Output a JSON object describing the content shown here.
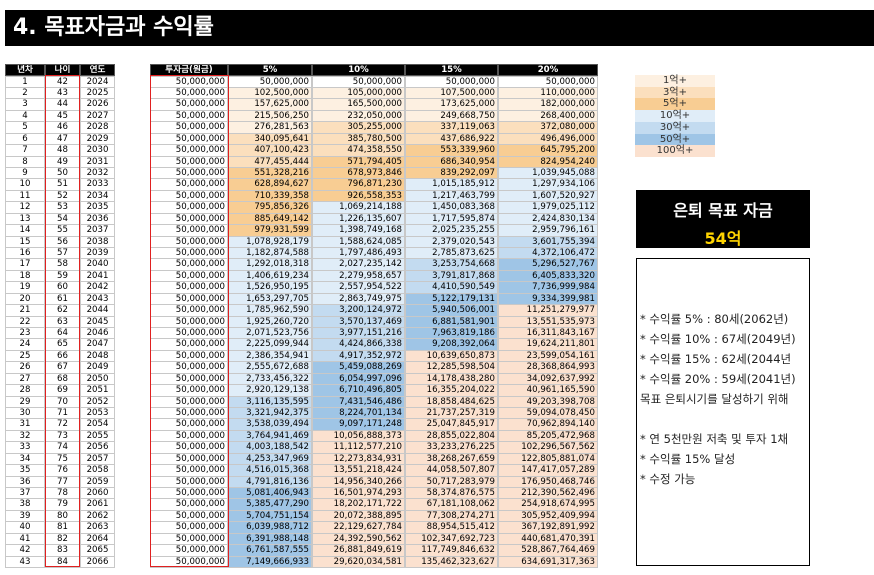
{
  "header": {
    "title": "4. 목표자금과 수익률"
  },
  "table": {
    "headers": [
      "년차",
      "나이",
      "연도",
      "투자금(원금)",
      "5%",
      "10%",
      "15%",
      "20%"
    ],
    "rows": [
      [
        1,
        42,
        2024,
        "50,000,000",
        "50,000,000",
        "50,000,000",
        "50,000,000",
        "50,000,000"
      ],
      [
        2,
        43,
        2025,
        "50,000,000",
        "102,500,000",
        "105,000,000",
        "107,500,000",
        "110,000,000"
      ],
      [
        3,
        44,
        2026,
        "50,000,000",
        "157,625,000",
        "165,500,000",
        "173,625,000",
        "182,000,000"
      ],
      [
        4,
        45,
        2027,
        "50,000,000",
        "215,506,250",
        "232,050,000",
        "249,668,750",
        "268,400,000"
      ],
      [
        5,
        46,
        2028,
        "50,000,000",
        "276,281,563",
        "305,255,000",
        "337,119,063",
        "372,080,000"
      ],
      [
        6,
        47,
        2029,
        "50,000,000",
        "340,095,641",
        "385,780,500",
        "437,686,922",
        "496,496,000"
      ],
      [
        7,
        48,
        2030,
        "50,000,000",
        "407,100,423",
        "474,358,550",
        "553,339,960",
        "645,795,200"
      ],
      [
        8,
        49,
        2031,
        "50,000,000",
        "477,455,444",
        "571,794,405",
        "686,340,954",
        "824,954,240"
      ],
      [
        9,
        50,
        2032,
        "50,000,000",
        "551,328,216",
        "678,973,846",
        "839,292,097",
        "1,039,945,088"
      ],
      [
        10,
        51,
        2033,
        "50,000,000",
        "628,894,627",
        "796,871,230",
        "1,015,185,912",
        "1,297,934,106"
      ],
      [
        11,
        52,
        2034,
        "50,000,000",
        "710,339,358",
        "926,558,353",
        "1,217,463,799",
        "1,607,520,927"
      ],
      [
        12,
        53,
        2035,
        "50,000,000",
        "795,856,326",
        "1,069,214,188",
        "1,450,083,368",
        "1,979,025,112"
      ],
      [
        13,
        54,
        2036,
        "50,000,000",
        "885,649,142",
        "1,226,135,607",
        "1,717,595,874",
        "2,424,830,134"
      ],
      [
        14,
        55,
        2037,
        "50,000,000",
        "979,931,599",
        "1,398,749,168",
        "2,025,235,255",
        "2,959,796,161"
      ],
      [
        15,
        56,
        2038,
        "50,000,000",
        "1,078,928,179",
        "1,588,624,085",
        "2,379,020,543",
        "3,601,755,394"
      ],
      [
        16,
        57,
        2039,
        "50,000,000",
        "1,182,874,588",
        "1,797,486,493",
        "2,785,873,625",
        "4,372,106,472"
      ],
      [
        17,
        58,
        2040,
        "50,000,000",
        "1,292,018,318",
        "2,027,235,142",
        "3,253,754,668",
        "5,296,527,767"
      ],
      [
        18,
        59,
        2041,
        "50,000,000",
        "1,406,619,234",
        "2,279,958,657",
        "3,791,817,868",
        "6,405,833,320"
      ],
      [
        19,
        60,
        2042,
        "50,000,000",
        "1,526,950,195",
        "2,557,954,522",
        "4,410,590,549",
        "7,736,999,984"
      ],
      [
        20,
        61,
        2043,
        "50,000,000",
        "1,653,297,705",
        "2,863,749,975",
        "5,122,179,131",
        "9,334,399,981"
      ],
      [
        21,
        62,
        2044,
        "50,000,000",
        "1,785,962,590",
        "3,200,124,972",
        "5,940,506,001",
        "11,251,279,977"
      ],
      [
        22,
        63,
        2045,
        "50,000,000",
        "1,925,260,720",
        "3,570,137,469",
        "6,881,581,901",
        "13,551,535,973"
      ],
      [
        23,
        64,
        2046,
        "50,000,000",
        "2,071,523,756",
        "3,977,151,216",
        "7,963,819,186",
        "16,311,843,167"
      ],
      [
        24,
        65,
        2047,
        "50,000,000",
        "2,225,099,944",
        "4,424,866,338",
        "9,208,392,064",
        "19,624,211,801"
      ],
      [
        25,
        66,
        2048,
        "50,000,000",
        "2,386,354,941",
        "4,917,352,972",
        "10,639,650,873",
        "23,599,054,161"
      ],
      [
        26,
        67,
        2049,
        "50,000,000",
        "2,555,672,688",
        "5,459,088,269",
        "12,285,598,504",
        "28,368,864,993"
      ],
      [
        27,
        68,
        2050,
        "50,000,000",
        "2,733,456,322",
        "6,054,997,096",
        "14,178,438,280",
        "34,092,637,992"
      ],
      [
        28,
        69,
        2051,
        "50,000,000",
        "2,920,129,138",
        "6,710,496,805",
        "16,355,204,022",
        "40,961,165,590"
      ],
      [
        29,
        70,
        2052,
        "50,000,000",
        "3,116,135,595",
        "7,431,546,486",
        "18,858,484,625",
        "49,203,398,708"
      ],
      [
        30,
        71,
        2053,
        "50,000,000",
        "3,321,942,375",
        "8,224,701,134",
        "21,737,257,319",
        "59,094,078,450"
      ],
      [
        31,
        72,
        2054,
        "50,000,000",
        "3,538,039,494",
        "9,097,171,248",
        "25,047,845,917",
        "70,962,894,140"
      ],
      [
        32,
        73,
        2055,
        "50,000,000",
        "3,764,941,469",
        "10,056,888,373",
        "28,855,022,804",
        "85,205,472,968"
      ],
      [
        33,
        74,
        2056,
        "50,000,000",
        "4,003,188,542",
        "11,112,577,210",
        "33,233,276,225",
        "102,296,567,562"
      ],
      [
        34,
        75,
        2057,
        "50,000,000",
        "4,253,347,969",
        "12,273,834,931",
        "38,268,267,659",
        "122,805,881,074"
      ],
      [
        35,
        76,
        2058,
        "50,000,000",
        "4,516,015,368",
        "13,551,218,424",
        "44,058,507,807",
        "147,417,057,289"
      ],
      [
        36,
        77,
        2059,
        "50,000,000",
        "4,791,816,136",
        "14,956,340,266",
        "50,717,283,979",
        "176,950,468,746"
      ],
      [
        37,
        78,
        2060,
        "50,000,000",
        "5,081,406,943",
        "16,501,974,293",
        "58,374,876,575",
        "212,390,562,496"
      ],
      [
        38,
        79,
        2061,
        "50,000,000",
        "5,385,477,290",
        "18,202,171,722",
        "67,181,108,062",
        "254,918,674,995"
      ],
      [
        39,
        80,
        2062,
        "50,000,000",
        "5,704,751,154",
        "20,072,388,895",
        "77,308,274,271",
        "305,952,409,994"
      ],
      [
        40,
        81,
        2063,
        "50,000,000",
        "6,039,988,712",
        "22,129,627,784",
        "88,954,515,412",
        "367,192,891,992"
      ],
      [
        41,
        82,
        2064,
        "50,000,000",
        "6,391,988,148",
        "24,392,590,562",
        "102,347,692,723",
        "440,681,470,391"
      ],
      [
        42,
        83,
        2065,
        "50,000,000",
        "6,761,587,555",
        "26,881,849,619",
        "117,749,846,632",
        "528,867,764,469"
      ],
      [
        43,
        84,
        2066,
        "50,000,000",
        "7,149,666,933",
        "29,620,034,581",
        "135,462,323,627",
        "634,691,317,363"
      ]
    ]
  },
  "legend": [
    {
      "label": "1억+",
      "color": "#fdf0e1"
    },
    {
      "label": "3억+",
      "color": "#fbdfbd"
    },
    {
      "label": "5억+",
      "color": "#f8cd93"
    },
    {
      "label": "10억+",
      "color": "#e0edf8"
    },
    {
      "label": "30억+",
      "color": "#c3dbf0"
    },
    {
      "label": "50억+",
      "color": "#9fc5e6"
    },
    {
      "label": "100억+",
      "color": "#fbe1cf"
    }
  ],
  "target": {
    "title": "은퇴 목표 자금",
    "value": "54억"
  },
  "notes": [
    "* 수익률 5% : 80세(2062년)",
    "* 수익률 10% : 67세(2049년)",
    "* 수익률 15% : 62세(2044년",
    "* 수익률 20% : 59세(2041년)",
    "목표 은퇴시기를 달성하기 위해",
    "* 연 5천만원 저축 및 투자 1채",
    "* 수익률 15% 달성",
    "* 수정 가능"
  ]
}
